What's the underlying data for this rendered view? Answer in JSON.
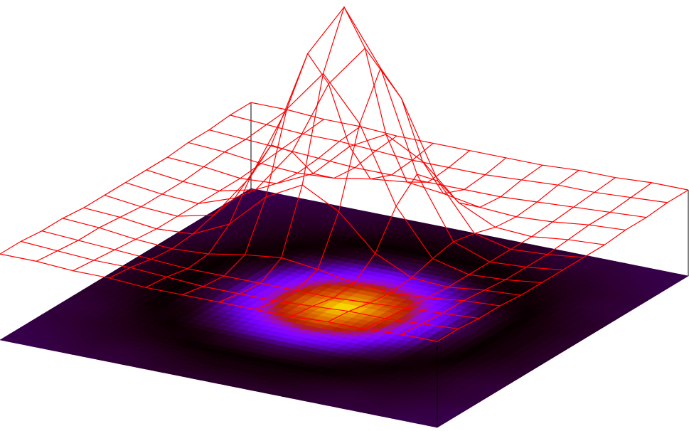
{
  "chart_data": {
    "type": "surface",
    "x": [
      -6,
      -5,
      -4,
      -3,
      -2,
      -1,
      0,
      1,
      2,
      3,
      4,
      5,
      6
    ],
    "y": [
      -6,
      -5,
      -4,
      -3,
      -2,
      -1,
      0,
      1,
      2,
      3,
      4,
      5,
      6
    ],
    "xlim": [
      -6,
      6
    ],
    "ylim": [
      -6,
      6
    ],
    "zlim": [
      -0.4,
      1
    ],
    "color": "#ff0000",
    "heatmap": true,
    "z": [
      [
        0,
        0,
        -0.01,
        -0.01,
        -0.02,
        -0.02,
        -0.02,
        -0.02,
        -0.02,
        -0.01,
        -0.01,
        0,
        0
      ],
      [
        0,
        -0.01,
        -0.02,
        -0.02,
        -0.03,
        -0.04,
        -0.04,
        -0.04,
        -0.03,
        -0.02,
        -0.02,
        -0.01,
        0
      ],
      [
        -0.01,
        -0.02,
        -0.03,
        -0.04,
        -0.05,
        -0.05,
        -0.05,
        -0.05,
        -0.05,
        -0.04,
        -0.03,
        -0.02,
        -0.01
      ],
      [
        -0.01,
        -0.02,
        -0.04,
        -0.05,
        -0.04,
        -0.01,
        0.01,
        -0.01,
        -0.04,
        -0.05,
        -0.04,
        -0.02,
        -0.01
      ],
      [
        -0.02,
        -0.03,
        -0.05,
        -0.04,
        0.04,
        0.2,
        0.29,
        0.2,
        0.04,
        -0.04,
        -0.05,
        -0.03,
        -0.02
      ],
      [
        -0.02,
        -0.04,
        -0.05,
        -0.01,
        0.2,
        0.55,
        0.75,
        0.55,
        0.2,
        -0.01,
        -0.05,
        -0.04,
        -0.02
      ],
      [
        -0.02,
        -0.04,
        -0.05,
        0.01,
        0.29,
        0.75,
        1,
        0.75,
        0.29,
        0.01,
        -0.05,
        -0.04,
        -0.02
      ],
      [
        -0.02,
        -0.04,
        -0.05,
        -0.01,
        0.2,
        0.55,
        0.75,
        0.55,
        0.2,
        -0.01,
        -0.05,
        -0.04,
        -0.02
      ],
      [
        -0.02,
        -0.03,
        -0.05,
        -0.04,
        0.04,
        0.2,
        0.29,
        0.2,
        0.04,
        -0.04,
        -0.05,
        -0.03,
        -0.02
      ],
      [
        -0.01,
        -0.02,
        -0.04,
        -0.05,
        -0.04,
        -0.01,
        0.01,
        -0.01,
        -0.04,
        -0.05,
        -0.04,
        -0.02,
        -0.01
      ],
      [
        -0.01,
        -0.02,
        -0.03,
        -0.04,
        -0.05,
        -0.05,
        -0.05,
        -0.05,
        -0.05,
        -0.04,
        -0.03,
        -0.02,
        -0.01
      ],
      [
        0,
        -0.01,
        -0.02,
        -0.02,
        -0.03,
        -0.04,
        -0.04,
        -0.04,
        -0.03,
        -0.02,
        -0.02,
        -0.01,
        0
      ],
      [
        0,
        0,
        -0.01,
        -0.01,
        -0.02,
        -0.02,
        -0.02,
        -0.02,
        -0.02,
        -0.01,
        -0.01,
        0,
        0
      ]
    ]
  }
}
